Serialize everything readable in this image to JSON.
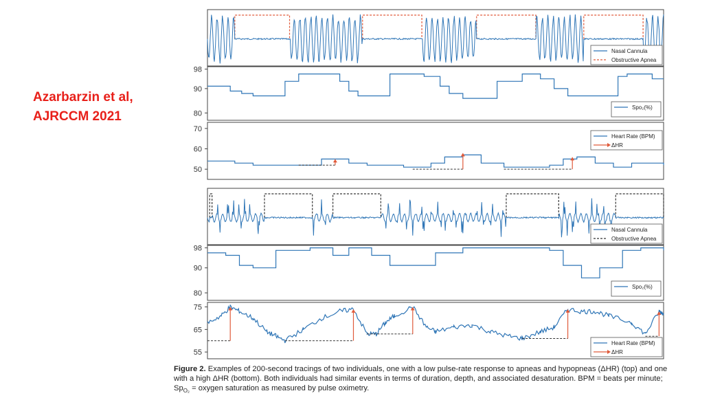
{
  "citation": {
    "line1": "Azarbarzin et al,",
    "line2": "AJRCCM 2021"
  },
  "caption": {
    "label": "Figure 2.",
    "text": "Examples of 200-second tracings of two individuals, one with a low pulse-rate response to apneas and hypopneas (ΔHR) (top) and one with a high ΔHR (bottom). Both individuals had similar events in terms of duration, depth, and associated desaturation. BPM = beats per minute; Sp",
    "sub": "O₂",
    "tail": " = oxygen saturation as measured by pulse oximetry."
  },
  "colors": {
    "signal": "#2e75b6",
    "apnea_top": "#e05a3a",
    "apnea_bottom": "#333333",
    "hr_arrow": "#e05a3a",
    "citation": "#e8201a"
  },
  "chart_data": [
    {
      "type": "line",
      "panel": "top-nasal",
      "legend": [
        "Nasal Cannula",
        "Obstructive Apnea"
      ],
      "x_range": [
        0,
        200
      ],
      "apnea_events": [
        [
          12,
          36
        ],
        [
          68,
          94
        ],
        [
          118,
          144
        ],
        [
          165,
          191
        ]
      ]
    },
    {
      "type": "line",
      "panel": "top-spo2",
      "legend": [
        "Spo₂(%)"
      ],
      "y_ticks": [
        80,
        90,
        98
      ],
      "ylim": [
        77,
        99
      ],
      "x": [
        0,
        10,
        15,
        20,
        28,
        34,
        40,
        55,
        58,
        62,
        66,
        80,
        95,
        102,
        106,
        112,
        127,
        138,
        146,
        152,
        158,
        162,
        180,
        184,
        188,
        195,
        200
      ],
      "y": [
        91,
        89,
        88,
        87,
        87,
        93,
        96,
        96,
        93,
        89,
        87,
        96,
        95,
        91,
        88,
        86,
        93,
        96,
        94,
        90,
        87,
        87,
        95,
        96,
        96,
        94,
        94
      ]
    },
    {
      "type": "line",
      "panel": "top-hr",
      "legend": [
        "Heart Rate (BPM)",
        "ΔHR"
      ],
      "y_ticks": [
        50,
        60,
        70
      ],
      "ylim": [
        45,
        73
      ],
      "x": [
        0,
        8,
        12,
        20,
        28,
        40,
        50,
        56,
        62,
        70,
        80,
        86,
        94,
        98,
        104,
        112,
        120,
        130,
        144,
        150,
        156,
        162,
        170,
        178,
        186,
        196,
        200
      ],
      "y": [
        54,
        54,
        53,
        52,
        52,
        52,
        55,
        55,
        53,
        52,
        52,
        51,
        51,
        53,
        56,
        57,
        53,
        51,
        51,
        52,
        55,
        56,
        53,
        51,
        53,
        53,
        52
      ],
      "delta_hr_arrows": [
        {
          "x_start": 40,
          "x_end": 56,
          "baseline": 52,
          "peak": 55
        },
        {
          "x_start": 90,
          "x_end": 112,
          "baseline": 50,
          "peak": 58
        },
        {
          "x_start": 130,
          "x_end": 160,
          "baseline": 50,
          "peak": 56
        }
      ]
    },
    {
      "type": "line",
      "panel": "bottom-nasal",
      "legend": [
        "Nasal Cannula",
        "Obstructive Apnea"
      ],
      "x_range": [
        0,
        200
      ],
      "apnea_events": [
        [
          1,
          2
        ],
        [
          25,
          46
        ],
        [
          55,
          76
        ],
        [
          131,
          154
        ],
        [
          179,
          201
        ]
      ]
    },
    {
      "type": "line",
      "panel": "bottom-spo2",
      "legend": [
        "Spo₂(%)"
      ],
      "y_ticks": [
        80,
        90,
        98
      ],
      "ylim": [
        77,
        99
      ],
      "x": [
        0,
        8,
        14,
        20,
        30,
        45,
        55,
        62,
        72,
        80,
        90,
        100,
        112,
        126,
        140,
        150,
        156,
        164,
        172,
        182,
        190,
        200
      ],
      "y": [
        96,
        95,
        91,
        90,
        97,
        98,
        95,
        98,
        95,
        91,
        91,
        96,
        98,
        98,
        98,
        97,
        91,
        86,
        90,
        97,
        98,
        97
      ]
    },
    {
      "type": "line",
      "panel": "bottom-hr",
      "legend": [
        "Heart Rate (BPM)",
        "ΔHR"
      ],
      "y_ticks": [
        55,
        65,
        75
      ],
      "ylim": [
        52,
        77
      ],
      "x": [
        0,
        6,
        10,
        14,
        20,
        26,
        30,
        34,
        42,
        50,
        58,
        64,
        70,
        74,
        78,
        82,
        90,
        96,
        100,
        108,
        116,
        124,
        132,
        138,
        146,
        152,
        158,
        164,
        170,
        176,
        186,
        192,
        198,
        200
      ],
      "y": [
        68,
        71,
        75,
        73,
        70,
        64,
        62,
        60,
        65,
        70,
        73,
        74,
        63,
        63,
        68,
        71,
        75,
        66,
        64,
        66,
        67,
        64,
        62,
        61,
        64,
        66,
        74,
        73,
        73,
        71,
        68,
        63,
        73,
        72
      ],
      "delta_hr_arrows": [
        {
          "x_start": 0,
          "x_end": 10,
          "baseline": 60,
          "peak": 75
        },
        {
          "x_start": 34,
          "x_end": 64,
          "baseline": 60,
          "peak": 74
        },
        {
          "x_start": 70,
          "x_end": 90,
          "baseline": 63,
          "peak": 75
        },
        {
          "x_start": 138,
          "x_end": 158,
          "baseline": 61,
          "peak": 74
        },
        {
          "x_start": 192,
          "x_end": 198,
          "baseline": 62,
          "peak": 73
        }
      ]
    }
  ]
}
